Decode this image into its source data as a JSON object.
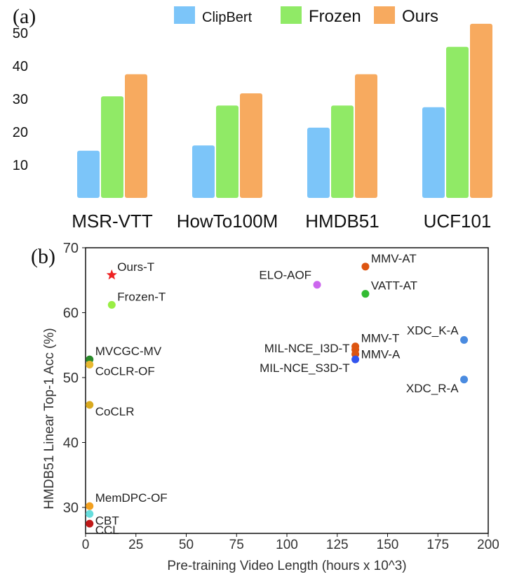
{
  "chart_data": [
    {
      "panel_label": "(a)",
      "type": "bar",
      "categories": [
        "MSR-VTT",
        "HowTo100M",
        "HMDB51",
        "UCF101"
      ],
      "series": [
        {
          "name": "ClipBert",
          "color": "#7cc5f9",
          "values": [
            14.3,
            15.9,
            21.3,
            27.5
          ]
        },
        {
          "name": "Frozen",
          "color": "#90ea66",
          "values": [
            30.8,
            28.0,
            28.0,
            45.8
          ]
        },
        {
          "name": "Ours",
          "color": "#f7aa5f",
          "values": [
            37.5,
            31.7,
            37.5,
            52.8
          ]
        }
      ],
      "yticks": [
        10,
        20,
        30,
        40,
        50
      ],
      "ylim": [
        0,
        55
      ],
      "legend": "top",
      "grid": false
    },
    {
      "panel_label": "(b)",
      "type": "scatter",
      "xlabel": "Pre-training Video Length (hours x 10^3)",
      "ylabel": "HMDB51 Linear Top-1 Acc (%)",
      "xlim": [
        0,
        200
      ],
      "ylim": [
        26,
        70
      ],
      "xticks": [
        0,
        25,
        50,
        75,
        100,
        125,
        150,
        175,
        200
      ],
      "yticks": [
        30,
        40,
        50,
        60,
        70
      ],
      "grid": false,
      "points": [
        {
          "label": "Ours-T",
          "x": 13,
          "y": 65.8,
          "color": "#ee2222",
          "marker": "star",
          "label_pos": "upper-right"
        },
        {
          "label": "Frozen-T",
          "x": 13,
          "y": 61.2,
          "color": "#99ee44",
          "marker": "circle",
          "label_pos": "upper-right"
        },
        {
          "label": "MVCGC-MV",
          "x": 2,
          "y": 52.8,
          "color": "#2a8a2a",
          "marker": "circle",
          "label_pos": "upper-right"
        },
        {
          "label": "CoCLR-OF",
          "x": 2,
          "y": 52.0,
          "color": "#e8b830",
          "marker": "circle",
          "label_pos": "lower-right"
        },
        {
          "label": "CoCLR",
          "x": 2,
          "y": 45.8,
          "color": "#d9aa20",
          "marker": "circle",
          "label_pos": "lower-right"
        },
        {
          "label": "MemDPC-OF",
          "x": 2,
          "y": 30.2,
          "color": "#f2a020",
          "marker": "circle",
          "label_pos": "upper-right"
        },
        {
          "label": "CBT",
          "x": 2,
          "y": 29.0,
          "color": "#66dddd",
          "marker": "circle",
          "label_pos": "lower-right"
        },
        {
          "label": "CCL",
          "x": 2,
          "y": 27.5,
          "color": "#c01818",
          "marker": "circle",
          "label_pos": "lower-right"
        },
        {
          "label": "ELO-AOF",
          "x": 115,
          "y": 64.3,
          "color": "#cc66ee",
          "marker": "circle",
          "label_pos": "upper-left"
        },
        {
          "label": "MMV-AT",
          "x": 139,
          "y": 67.1,
          "color": "#dd5511",
          "marker": "circle",
          "label_pos": "upper-right"
        },
        {
          "label": "VATT-AT",
          "x": 139,
          "y": 62.9,
          "color": "#33bb33",
          "marker": "circle",
          "label_pos": "upper-right"
        },
        {
          "label": "MMV-T",
          "x": 134,
          "y": 54.8,
          "color": "#dd5511",
          "marker": "circle",
          "label_pos": "upper-right"
        },
        {
          "label": "MIL-NCE_I3D-T",
          "x": 134,
          "y": 54.3,
          "color": "#dd5511",
          "marker": "circle",
          "label_pos": "left"
        },
        {
          "label": "MMV-A",
          "x": 134,
          "y": 53.6,
          "color": "#dd5511",
          "marker": "circle",
          "label_pos": "right"
        },
        {
          "label": "MIL-NCE_S3D-T",
          "x": 134,
          "y": 52.8,
          "color": "#3355ee",
          "marker": "circle",
          "label_pos": "lower-left"
        },
        {
          "label": "XDC_K-A",
          "x": 188,
          "y": 55.8,
          "color": "#4a8be0",
          "marker": "circle",
          "label_pos": "upper-left"
        },
        {
          "label": "XDC_R-A",
          "x": 188,
          "y": 49.7,
          "color": "#4a8be0",
          "marker": "circle",
          "label_pos": "lower-left"
        }
      ]
    }
  ]
}
